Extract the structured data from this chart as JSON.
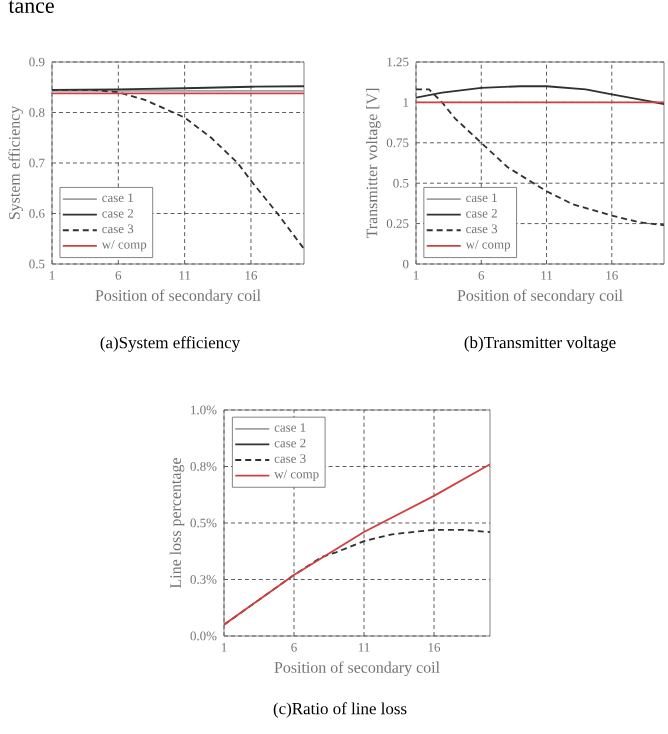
{
  "chart_data": [
    {
      "type": "line",
      "title": "(a)System efficiency",
      "xlabel": "Position of secondary coil",
      "ylabel": "System efficiency",
      "annotations": [
        "tance"
      ],
      "xlim": [
        1,
        20
      ],
      "xticks": [
        1,
        6,
        11,
        16
      ],
      "ylim": [
        0.5,
        0.9
      ],
      "yticks": [
        0.5,
        0.6,
        0.7,
        0.8,
        0.9
      ],
      "grid": true,
      "legend": "bottom left",
      "series": [
        {
          "name": "case 1",
          "color": "#a0a0a0",
          "line_style": "solid",
          "x": [
            1,
            6,
            11,
            16,
            20
          ],
          "values": [
            0.843,
            0.843,
            0.843,
            0.843,
            0.843
          ]
        },
        {
          "name": "case 2",
          "color": "#303030",
          "line_style": "solid",
          "x": [
            1,
            6,
            11,
            16,
            20
          ],
          "values": [
            0.845,
            0.846,
            0.848,
            0.851,
            0.852
          ]
        },
        {
          "name": "case 3",
          "color": "#303030",
          "line_style": "dashed",
          "x": [
            1,
            4,
            6,
            8,
            11,
            13,
            15,
            16,
            18,
            20
          ],
          "values": [
            0.845,
            0.845,
            0.84,
            0.825,
            0.79,
            0.75,
            0.7,
            0.665,
            0.6,
            0.53
          ]
        },
        {
          "name": "w/ comp",
          "color": "#d04040",
          "line_style": "solid",
          "x": [
            1,
            6,
            11,
            16,
            20
          ],
          "values": [
            0.838,
            0.838,
            0.838,
            0.838,
            0.838
          ]
        }
      ]
    },
    {
      "type": "line",
      "title": "(b)Transmitter voltage",
      "xlabel": "Position of secondary coil",
      "ylabel": "Transmitter voltage [V]",
      "xlim": [
        1,
        20
      ],
      "xticks": [
        1,
        6,
        11,
        16
      ],
      "ylim": [
        0,
        1.25
      ],
      "yticks": [
        0,
        0.25,
        0.5,
        0.75,
        1,
        1.25
      ],
      "grid": true,
      "legend": "bottom left",
      "series": [
        {
          "name": "case 1",
          "color": "#a0a0a0",
          "line_style": "solid"
        },
        {
          "name": "case 2",
          "color": "#303030",
          "line_style": "solid",
          "x": [
            1,
            3,
            6,
            9,
            11,
            14,
            16,
            18,
            20
          ],
          "values": [
            1.03,
            1.06,
            1.09,
            1.1,
            1.1,
            1.08,
            1.05,
            1.02,
            0.99
          ]
        },
        {
          "name": "case 3",
          "color": "#303030",
          "line_style": "dashed",
          "x": [
            1,
            2,
            3,
            4,
            6,
            8,
            11,
            13,
            16,
            18,
            20
          ],
          "values": [
            1.08,
            1.08,
            1.0,
            0.9,
            0.75,
            0.6,
            0.45,
            0.37,
            0.3,
            0.26,
            0.24
          ]
        },
        {
          "name": "w/ comp",
          "color": "#d04040",
          "line_style": "solid",
          "x": [
            1,
            6,
            11,
            16,
            20
          ],
          "values": [
            1.0,
            1.0,
            1.0,
            1.0,
            1.0
          ]
        }
      ]
    },
    {
      "type": "line",
      "title": "(c)Ratio of line loss",
      "xlabel": "Position of secondary coil",
      "ylabel": "Line loss percentage",
      "xlim": [
        1,
        20
      ],
      "xticks": [
        1,
        6,
        11,
        16
      ],
      "ylim": [
        0,
        1.0
      ],
      "yticks": [
        {
          "value": 0,
          "label": "0.0%"
        },
        {
          "value": 0.25,
          "label": "0.3%"
        },
        {
          "value": 0.5,
          "label": "0.5%"
        },
        {
          "value": 0.75,
          "label": "0.8%"
        },
        {
          "value": 1.0,
          "label": "1.0%"
        }
      ],
      "grid": true,
      "legend": "top left",
      "series": [
        {
          "name": "case 1",
          "color": "#a0a0a0",
          "line_style": "solid"
        },
        {
          "name": "case 2",
          "color": "#303030",
          "line_style": "solid"
        },
        {
          "name": "case 3",
          "color": "#303030",
          "line_style": "dashed",
          "x": [
            1,
            6,
            8,
            9,
            11,
            13,
            16,
            18,
            20
          ],
          "values": [
            0.05,
            0.27,
            0.35,
            0.37,
            0.42,
            0.45,
            0.47,
            0.47,
            0.46
          ]
        },
        {
          "name": "w/ comp",
          "color": "#d04040",
          "line_style": "solid",
          "x": [
            1,
            6,
            11,
            16,
            20
          ],
          "values": [
            0.05,
            0.27,
            0.46,
            0.62,
            0.76
          ]
        }
      ]
    }
  ]
}
